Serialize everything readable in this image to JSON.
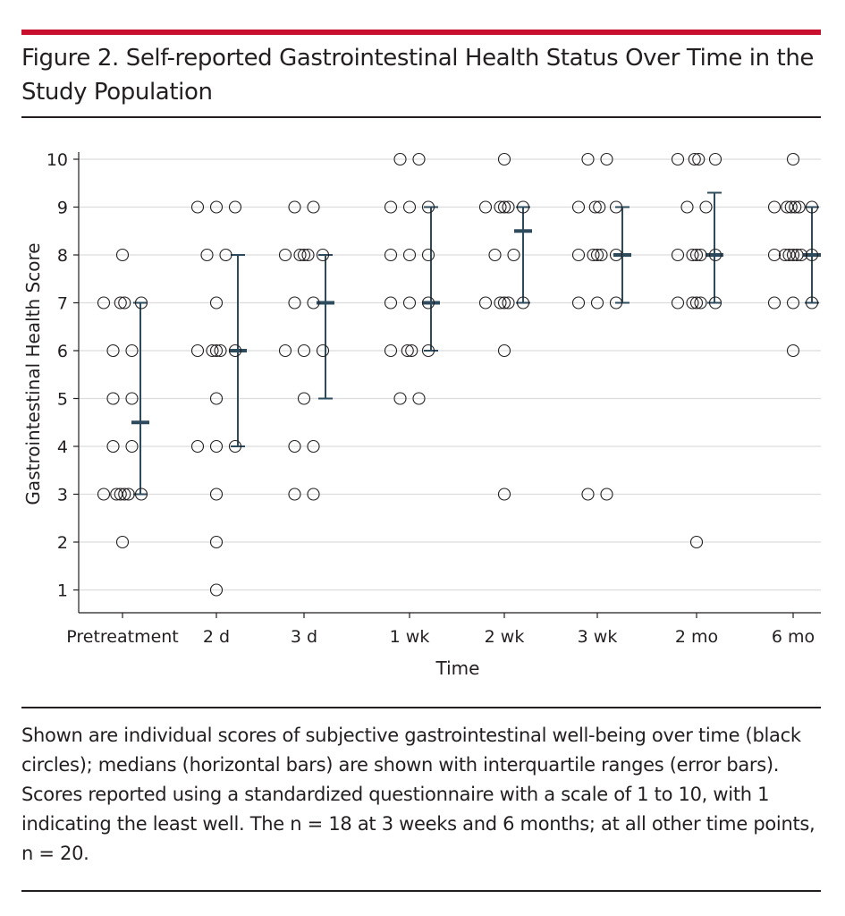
{
  "figure": {
    "title": "Figure 2. Self-reported Gastrointestinal Health Status Over Time in the Study Population",
    "caption": "Shown are individual scores of subjective gastrointestinal well-being over time (black circles); medians (horizontal bars) are shown with interquartile ranges (error bars). Scores reported using a standardized questionnaire with a scale of 1 to 10, with 1 indicating the least well. The n = 18 at 3 weeks and 6 months; at all other time points, n = 20.",
    "accent_color": "#c8102e"
  },
  "chart_data": {
    "type": "scatter",
    "xlabel": "Time",
    "ylabel": "Gastrointestinal Health Score",
    "ylim": [
      1,
      10
    ],
    "yticks": [
      1,
      2,
      3,
      4,
      5,
      6,
      7,
      8,
      9,
      10
    ],
    "grid": true,
    "point_color": "#231f20",
    "summary_color": "#2e4b5e",
    "categories": [
      "Pretreatment",
      "2 d",
      "3 d",
      "1 wk",
      "2 wk",
      "3 wk",
      "2 mo",
      "6 mo"
    ],
    "groups": [
      {
        "category": "Pretreatment",
        "scores": [
          8,
          7,
          7,
          7,
          7,
          6,
          6,
          5,
          5,
          4,
          4,
          3,
          3,
          3,
          3,
          3,
          3,
          2
        ],
        "median": 4.5,
        "q1": 3,
        "q3": 7
      },
      {
        "category": "2 d",
        "scores": [
          9,
          9,
          9,
          8,
          8,
          7,
          6,
          6,
          6,
          6,
          6,
          5,
          4,
          4,
          4,
          3,
          2,
          1
        ],
        "median": 6,
        "q1": 4,
        "q3": 8
      },
      {
        "category": "3 d",
        "scores": [
          9,
          9,
          8,
          8,
          8,
          8,
          8,
          7,
          7,
          6,
          6,
          6,
          5,
          4,
          4,
          3,
          3
        ],
        "median": 7,
        "q1": 5,
        "q3": 8
      },
      {
        "category": "1 wk",
        "scores": [
          10,
          10,
          9,
          9,
          9,
          8,
          8,
          8,
          7,
          7,
          7,
          6,
          6,
          6,
          6,
          5,
          5
        ],
        "median": 7,
        "q1": 6,
        "q3": 9
      },
      {
        "category": "2 wk",
        "scores": [
          10,
          9,
          9,
          9,
          9,
          9,
          8,
          8,
          7,
          7,
          7,
          7,
          7,
          6,
          3
        ],
        "median": 8.5,
        "q1": 7,
        "q3": 9
      },
      {
        "category": "3 wk",
        "scores": [
          10,
          10,
          9,
          9,
          9,
          9,
          8,
          8,
          8,
          8,
          8,
          7,
          7,
          7,
          3,
          3
        ],
        "median": 8,
        "q1": 7,
        "q3": 9
      },
      {
        "category": "2 mo",
        "scores": [
          10,
          10,
          10,
          10,
          9,
          9,
          8,
          8,
          8,
          8,
          8,
          7,
          7,
          7,
          7,
          7,
          2
        ],
        "median": 8,
        "q1": 7,
        "q3": 9.3
      },
      {
        "category": "6 mo",
        "scores": [
          10,
          9,
          9,
          9,
          9,
          9,
          9,
          8,
          8,
          8,
          8,
          8,
          8,
          8,
          7,
          7,
          7,
          6
        ],
        "median": 8,
        "q1": 7,
        "q3": 9
      }
    ]
  }
}
